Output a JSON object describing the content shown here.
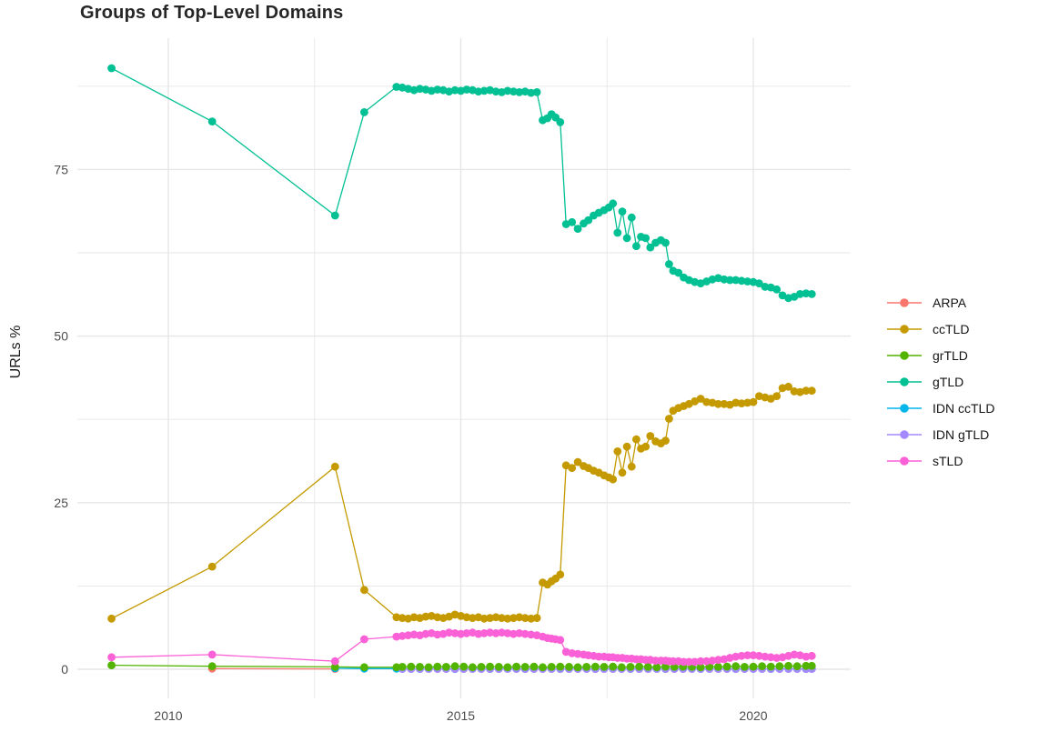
{
  "chart_data": {
    "type": "line",
    "title": "Groups of Top-Level Domains",
    "xlabel": "",
    "ylabel": "URLs %",
    "background": "#ffffff",
    "grid_color": "#e6e6e6",
    "tick_label_color": "#4d4d4d",
    "x_ticks": [
      2010,
      2015,
      2020
    ],
    "x_minor": [
      2012.5,
      2017.5
    ],
    "y_ticks": [
      0,
      25,
      50,
      75
    ],
    "y_minor": [
      12.5,
      37.5,
      62.5,
      87.5
    ],
    "x_range": [
      2008.45,
      2021.65
    ],
    "y_range": [
      -4.6,
      94.7
    ],
    "grid": true,
    "legend_position": "right",
    "draw_order": [
      "ARPA",
      "ccTLD",
      "gTLD",
      "IDN ccTLD",
      "IDN gTLD",
      "grTLD",
      "sTLD"
    ],
    "x_grid_A": [
      2014.0,
      2014.1,
      2014.2,
      2014.3,
      2014.4,
      2014.5,
      2014.6,
      2014.7,
      2014.8,
      2014.9,
      2015.0,
      2015.1,
      2015.2,
      2015.3,
      2015.4,
      2015.5,
      2015.6,
      2015.7,
      2015.8,
      2015.9,
      2016.0,
      2016.1,
      2016.2,
      2016.3
    ],
    "x_grid_B": [
      2016.4,
      2016.48,
      2016.55,
      2016.62,
      2016.7
    ],
    "x_grid_C": [
      2016.8,
      2016.9,
      2017.0,
      2017.1,
      2017.18,
      2017.27,
      2017.36,
      2017.45,
      2017.53,
      2017.6,
      2017.68,
      2017.76,
      2017.84,
      2017.92,
      2018.0,
      2018.08,
      2018.16,
      2018.24,
      2018.33,
      2018.42,
      2018.5,
      2018.56,
      2018.63,
      2018.72,
      2018.81,
      2018.9,
      2019.0,
      2019.1,
      2019.2,
      2019.3,
      2019.4,
      2019.5,
      2019.6,
      2019.7,
      2019.8,
      2019.9,
      2020.0,
      2020.1,
      2020.2,
      2020.3,
      2020.4,
      2020.5,
      2020.6,
      2020.7,
      2020.8,
      2020.9,
      2021.0
    ],
    "x_grid_D": [
      2014.0,
      2014.15,
      2014.3,
      2014.45,
      2014.6,
      2014.75,
      2014.9,
      2015.05,
      2015.2,
      2015.35,
      2015.5,
      2015.65,
      2015.8,
      2015.95,
      2016.1,
      2016.25,
      2016.4,
      2016.55,
      2016.7,
      2016.85,
      2017.0,
      2017.15,
      2017.3,
      2017.45,
      2017.6,
      2017.75,
      2017.9,
      2018.05,
      2018.2,
      2018.35,
      2018.5,
      2018.65,
      2018.8,
      2018.95,
      2019.1,
      2019.25,
      2019.4,
      2019.55,
      2019.7,
      2019.85,
      2020.0,
      2020.15,
      2020.3,
      2020.45,
      2020.6,
      2020.75,
      2020.9,
      2021.0
    ],
    "series": [
      {
        "name": "ARPA",
        "color": "#F8766D",
        "points": [
          [
            2010.75,
            0.1
          ],
          [
            2012.85,
            0.05
          ]
        ],
        "segments": []
      },
      {
        "name": "ccTLD",
        "color": "#C49A00",
        "points": [
          [
            2009.03,
            7.6
          ],
          [
            2010.75,
            15.4
          ],
          [
            2012.85,
            30.4
          ],
          [
            2013.35,
            11.9
          ],
          [
            2013.9,
            7.8
          ]
        ],
        "segments": [
          {
            "grid": "A",
            "values": [
              7.7,
              7.6,
              7.8,
              7.7,
              7.9,
              8.0,
              7.8,
              7.7,
              7.9,
              8.2,
              8.0,
              7.8,
              7.7,
              7.8,
              7.6,
              7.7,
              7.8,
              7.7,
              7.6,
              7.7,
              7.8,
              7.7,
              7.6,
              7.7
            ]
          },
          {
            "grid": "B",
            "values": [
              13.0,
              12.7,
              13.2,
              13.6,
              14.2
            ]
          },
          {
            "grid": "C",
            "values": [
              30.6,
              30.2,
              31.1,
              30.5,
              30.2,
              29.8,
              29.5,
              29.1,
              28.8,
              28.5,
              32.7,
              29.5,
              33.4,
              30.4,
              34.5,
              33.1,
              33.4,
              35.0,
              34.2,
              33.9,
              34.3,
              37.6,
              38.8,
              39.2,
              39.5,
              39.8,
              40.2,
              40.6,
              40.1,
              40.0,
              39.8,
              39.8,
              39.7,
              40.0,
              39.9,
              40.0,
              40.1,
              41.0,
              40.8,
              40.6,
              41.0,
              42.2,
              42.4,
              41.7,
              41.6,
              41.8,
              41.8
            ]
          }
        ]
      },
      {
        "name": "grTLD",
        "color": "#53B400",
        "points": [
          [
            2009.03,
            0.6
          ],
          [
            2010.75,
            0.45
          ],
          [
            2012.85,
            0.35
          ],
          [
            2013.35,
            0.3
          ],
          [
            2013.9,
            0.3
          ]
        ],
        "segments": [
          {
            "grid": "D",
            "values": [
              0.35,
              0.4,
              0.35,
              0.3,
              0.4,
              0.35,
              0.45,
              0.4,
              0.3,
              0.35,
              0.4,
              0.35,
              0.3,
              0.4,
              0.35,
              0.4,
              0.3,
              0.35,
              0.4,
              0.35,
              0.3,
              0.35,
              0.4,
              0.35,
              0.4,
              0.3,
              0.35,
              0.4,
              0.35,
              0.3,
              0.4,
              0.35,
              0.4,
              0.35,
              0.3,
              0.4,
              0.35,
              0.4,
              0.45,
              0.35,
              0.4,
              0.45,
              0.4,
              0.45,
              0.5,
              0.45,
              0.5,
              0.5
            ]
          }
        ]
      },
      {
        "name": "gTLD",
        "color": "#00C094",
        "points": [
          [
            2009.03,
            90.2
          ],
          [
            2010.75,
            82.2
          ],
          [
            2012.85,
            68.1
          ],
          [
            2013.35,
            83.6
          ],
          [
            2013.9,
            87.4
          ]
        ],
        "segments": [
          {
            "grid": "A",
            "values": [
              87.3,
              87.1,
              86.9,
              87.1,
              87.0,
              86.8,
              87.0,
              86.9,
              86.7,
              86.9,
              86.8,
              87.0,
              86.9,
              86.7,
              86.8,
              86.9,
              86.7,
              86.6,
              86.8,
              86.7,
              86.6,
              86.7,
              86.5,
              86.6
            ]
          },
          {
            "grid": "B",
            "values": [
              82.4,
              82.7,
              83.3,
              82.8,
              82.1
            ]
          },
          {
            "grid": "C",
            "values": [
              66.8,
              67.1,
              66.1,
              66.9,
              67.4,
              68.1,
              68.5,
              68.9,
              69.3,
              69.9,
              65.5,
              68.7,
              64.7,
              67.8,
              63.5,
              64.9,
              64.7,
              63.3,
              64.0,
              64.4,
              64.0,
              60.8,
              59.8,
              59.5,
              58.8,
              58.4,
              58.1,
              57.9,
              58.2,
              58.5,
              58.7,
              58.5,
              58.4,
              58.4,
              58.3,
              58.2,
              58.1,
              57.9,
              57.4,
              57.3,
              57.0,
              56.1,
              55.7,
              55.9,
              56.3,
              56.4,
              56.3
            ]
          }
        ]
      },
      {
        "name": "IDN ccTLD",
        "color": "#00B6EB",
        "points": [
          [
            2012.85,
            0.15
          ],
          [
            2013.35,
            0.1
          ],
          [
            2013.9,
            0.1
          ]
        ],
        "segments": [
          {
            "grid": "D",
            "values": [
              0.1,
              0.08,
              0.06,
              0.08,
              0.1,
              0.08,
              0.06,
              0.08,
              0.1,
              0.08,
              0.06,
              0.08,
              0.1,
              0.08,
              0.06,
              0.08,
              0.1,
              0.08,
              0.06,
              0.08,
              0.1,
              0.08,
              0.06,
              0.08,
              0.1,
              0.08,
              0.06,
              0.08,
              0.1,
              0.08,
              0.06,
              0.08,
              0.1,
              0.08,
              0.06,
              0.08,
              0.1,
              0.08,
              0.06,
              0.08,
              0.1,
              0.08,
              0.06,
              0.08,
              0.1,
              0.08,
              0.06,
              0.08
            ]
          }
        ]
      },
      {
        "name": "IDN gTLD",
        "color": "#A58AFF",
        "points": [],
        "segments": [
          {
            "grid": "D",
            "values": [
              0.05,
              0.04,
              0.06,
              0.05,
              0.04,
              0.06,
              0.05,
              0.04,
              0.06,
              0.05,
              0.04,
              0.06,
              0.05,
              0.04,
              0.06,
              0.05,
              0.04,
              0.06,
              0.05,
              0.04,
              0.06,
              0.05,
              0.04,
              0.06,
              0.05,
              0.04,
              0.06,
              0.05,
              0.04,
              0.06,
              0.05,
              0.04,
              0.06,
              0.05,
              0.04,
              0.06,
              0.05,
              0.04,
              0.06,
              0.05,
              0.04,
              0.06,
              0.05,
              0.04,
              0.06,
              0.05,
              0.04,
              0.06
            ]
          }
        ]
      },
      {
        "name": "sTLD",
        "color": "#FB61D7",
        "points": [
          [
            2009.03,
            1.8
          ],
          [
            2010.75,
            2.2
          ],
          [
            2012.85,
            1.2
          ],
          [
            2013.35,
            4.5
          ],
          [
            2013.9,
            4.9
          ]
        ],
        "segments": [
          {
            "grid": "A",
            "values": [
              5.0,
              5.1,
              5.2,
              5.1,
              5.3,
              5.4,
              5.2,
              5.3,
              5.5,
              5.4,
              5.3,
              5.4,
              5.5,
              5.3,
              5.4,
              5.5,
              5.4,
              5.5,
              5.4,
              5.3,
              5.4,
              5.3,
              5.2,
              5.1
            ]
          },
          {
            "grid": "B",
            "values": [
              4.9,
              4.7,
              4.6,
              4.5,
              4.4
            ]
          },
          {
            "grid": "C",
            "values": [
              2.6,
              2.4,
              2.3,
              2.2,
              2.1,
              2.0,
              1.9,
              1.9,
              1.8,
              1.8,
              1.7,
              1.7,
              1.6,
              1.6,
              1.5,
              1.5,
              1.4,
              1.4,
              1.3,
              1.3,
              1.3,
              1.2,
              1.2,
              1.2,
              1.1,
              1.1,
              1.1,
              1.2,
              1.2,
              1.3,
              1.4,
              1.5,
              1.7,
              1.9,
              2.0,
              2.1,
              2.1,
              2.0,
              1.9,
              1.8,
              1.7,
              1.8,
              2.0,
              2.2,
              2.1,
              1.9,
              2.0
            ]
          }
        ]
      }
    ]
  }
}
